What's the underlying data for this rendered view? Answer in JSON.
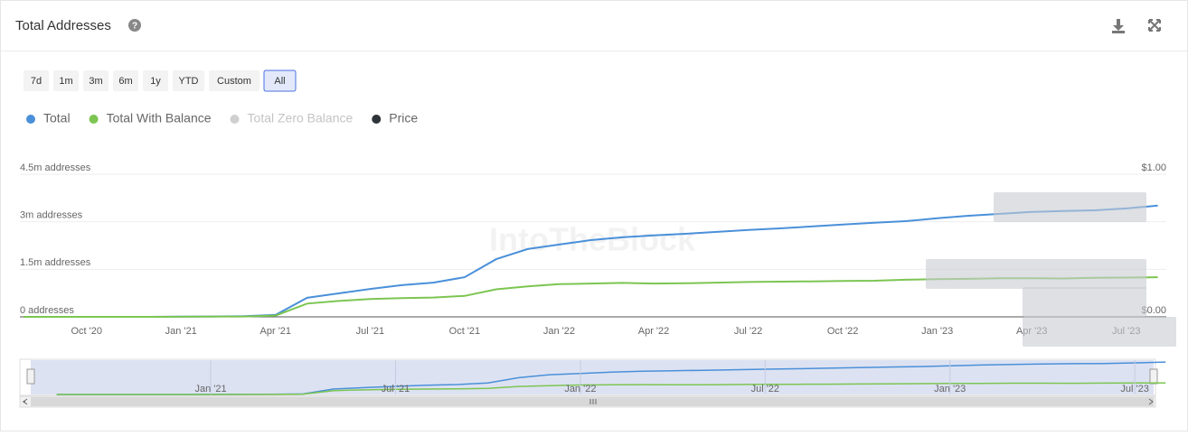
{
  "header": {
    "title": "Total Addresses"
  },
  "range_buttons": [
    {
      "label": "7d"
    },
    {
      "label": "1m"
    },
    {
      "label": "3m"
    },
    {
      "label": "6m"
    },
    {
      "label": "1y"
    },
    {
      "label": "YTD"
    },
    {
      "label": "Custom"
    },
    {
      "label": "All",
      "active": true
    }
  ],
  "watermark": "IntoTheBlock",
  "chart_data": {
    "type": "line",
    "categories": [
      null,
      null,
      "Oct '20",
      null,
      null,
      "Jan '21",
      null,
      null,
      "Apr '21",
      null,
      null,
      "Jul '21",
      null,
      null,
      "Oct '21",
      null,
      null,
      "Jan '22",
      null,
      null,
      "Apr '22",
      null,
      null,
      "Jul '22",
      null,
      null,
      "Oct '22",
      null,
      null,
      "Jan '23",
      null,
      null,
      "Apr '23",
      null,
      null,
      "Jul '23",
      null
    ],
    "series": [
      {
        "name": "Total",
        "color": "#4a90d9",
        "values": [
          0,
          0,
          0,
          0,
          0,
          5000,
          10000,
          20000,
          60000,
          600000,
          740000,
          880000,
          1000000,
          1080000,
          1250000,
          1820000,
          2140000,
          2280000,
          2420000,
          2510000,
          2570000,
          2620000,
          2680000,
          2740000,
          2790000,
          2850000,
          2910000,
          2970000,
          3020000,
          3110000,
          3190000,
          3250000,
          3310000,
          3340000,
          3360000,
          3420000,
          3510000
        ]
      },
      {
        "name": "Total With Balance",
        "color": "#7cc552",
        "values": [
          0,
          0,
          0,
          0,
          0,
          3000,
          6000,
          10000,
          40000,
          420000,
          500000,
          560000,
          590000,
          610000,
          660000,
          870000,
          960000,
          1030000,
          1050000,
          1070000,
          1050000,
          1060000,
          1080000,
          1100000,
          1110000,
          1120000,
          1130000,
          1140000,
          1170000,
          1190000,
          1200000,
          1220000,
          1220000,
          1210000,
          1230000,
          1240000,
          1250000
        ]
      }
    ],
    "legend_only": [
      {
        "name": "Total Zero Balance",
        "color": "#cfcfcf",
        "disabled": true
      },
      {
        "name": "Price",
        "color": "#2f3438"
      }
    ],
    "ylim": [
      0,
      4500000
    ],
    "yticks": [
      {
        "value": 0,
        "label": "0 addresses"
      },
      {
        "value": 1500000,
        "label": "1.5m addresses"
      },
      {
        "value": 3000000,
        "label": "3m addresses"
      },
      {
        "value": 4500000,
        "label": "4.5m addresses"
      }
    ],
    "y2lim": [
      0,
      1
    ],
    "y2ticks": [
      {
        "value": 0,
        "label": "$0.00"
      },
      {
        "value": 1,
        "label": "$1.00"
      }
    ],
    "grid": true
  },
  "navigator": {
    "labels": [
      "Jan '21",
      "Jul '21",
      "Jan '22",
      "Jul '22",
      "Jan '23",
      "Jul '23"
    ]
  }
}
